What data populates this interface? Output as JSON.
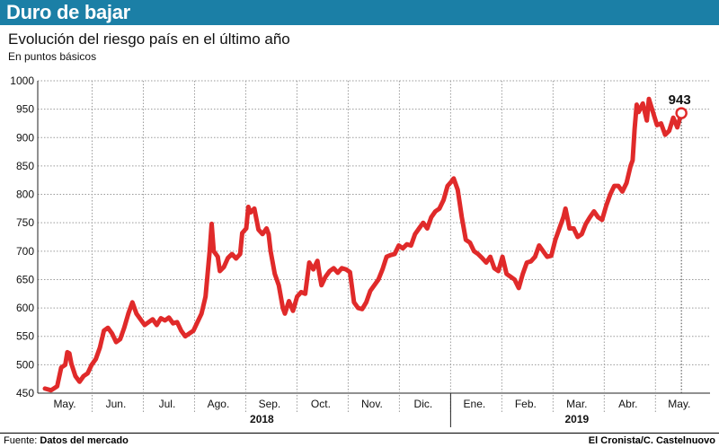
{
  "header": {
    "title": "Duro de bajar"
  },
  "subtitle": "Evolución del riesgo país en el último año",
  "units_label": "En puntos básicos",
  "footer": {
    "source_prefix": "Fuente:",
    "source_value": "Datos del mercado",
    "credit": "El Cronista/C. Castelnuovo"
  },
  "colors": {
    "header_bg": "#1b7fa6",
    "line": "#e02a2a",
    "grid": "#999999"
  },
  "chart_data": {
    "type": "line",
    "title": "Evolución del riesgo país en el último año",
    "ylabel": "En puntos básicos",
    "ylim": [
      450,
      1000
    ],
    "yticks": [
      450,
      500,
      550,
      600,
      650,
      700,
      750,
      800,
      850,
      900,
      950,
      1000
    ],
    "month_labels": [
      "May.",
      "Jun.",
      "Jul.",
      "Ago.",
      "Sep.",
      "Oct.",
      "Nov.",
      "Dic.",
      "Ene.",
      "Feb.",
      "Mar.",
      "Abr.",
      "May."
    ],
    "year_labels": [
      "2018",
      "2019"
    ],
    "end_label": "943",
    "x_unit": "trading day index (0 = early May 2018, ~262 = May 2019)",
    "series": [
      {
        "name": "Riesgo país",
        "values": [
          [
            0,
            458
          ],
          [
            3,
            455
          ],
          [
            6,
            462
          ],
          [
            8,
            495
          ],
          [
            10,
            500
          ],
          [
            11,
            522
          ],
          [
            12,
            520
          ],
          [
            13,
            502
          ],
          [
            15,
            480
          ],
          [
            17,
            470
          ],
          [
            19,
            480
          ],
          [
            21,
            485
          ],
          [
            23,
            500
          ],
          [
            25,
            510
          ],
          [
            27,
            530
          ],
          [
            29,
            560
          ],
          [
            31,
            565
          ],
          [
            33,
            555
          ],
          [
            35,
            540
          ],
          [
            37,
            545
          ],
          [
            39,
            565
          ],
          [
            41,
            590
          ],
          [
            43,
            610
          ],
          [
            45,
            590
          ],
          [
            47,
            580
          ],
          [
            49,
            570
          ],
          [
            51,
            575
          ],
          [
            53,
            580
          ],
          [
            55,
            570
          ],
          [
            57,
            582
          ],
          [
            59,
            578
          ],
          [
            61,
            583
          ],
          [
            63,
            573
          ],
          [
            65,
            575
          ],
          [
            67,
            560
          ],
          [
            69,
            550
          ],
          [
            71,
            555
          ],
          [
            73,
            560
          ],
          [
            75,
            575
          ],
          [
            77,
            590
          ],
          [
            79,
            620
          ],
          [
            81,
            700
          ],
          [
            82,
            748
          ],
          [
            83,
            700
          ],
          [
            85,
            690
          ],
          [
            86,
            665
          ],
          [
            88,
            672
          ],
          [
            90,
            688
          ],
          [
            92,
            695
          ],
          [
            94,
            687
          ],
          [
            96,
            695
          ],
          [
            97,
            732
          ],
          [
            99,
            740
          ],
          [
            100,
            778
          ],
          [
            101,
            768
          ],
          [
            103,
            775
          ],
          [
            105,
            738
          ],
          [
            107,
            730
          ],
          [
            109,
            740
          ],
          [
            110,
            730
          ],
          [
            111,
            700
          ],
          [
            113,
            660
          ],
          [
            115,
            640
          ],
          [
            117,
            600
          ],
          [
            118,
            590
          ],
          [
            120,
            612
          ],
          [
            122,
            595
          ],
          [
            124,
            620
          ],
          [
            126,
            628
          ],
          [
            128,
            625
          ],
          [
            130,
            680
          ],
          [
            132,
            668
          ],
          [
            134,
            683
          ],
          [
            135,
            660
          ],
          [
            136,
            640
          ],
          [
            138,
            655
          ],
          [
            140,
            665
          ],
          [
            142,
            670
          ],
          [
            144,
            662
          ],
          [
            146,
            670
          ],
          [
            148,
            668
          ],
          [
            150,
            663
          ],
          [
            152,
            610
          ],
          [
            154,
            600
          ],
          [
            156,
            598
          ],
          [
            158,
            610
          ],
          [
            160,
            630
          ],
          [
            162,
            640
          ],
          [
            164,
            650
          ],
          [
            166,
            668
          ],
          [
            168,
            690
          ],
          [
            170,
            693
          ],
          [
            172,
            695
          ],
          [
            174,
            710
          ],
          [
            176,
            705
          ],
          [
            178,
            712
          ],
          [
            180,
            710
          ],
          [
            182,
            730
          ],
          [
            184,
            740
          ],
          [
            186,
            750
          ],
          [
            188,
            740
          ],
          [
            190,
            760
          ],
          [
            192,
            770
          ],
          [
            194,
            775
          ],
          [
            196,
            790
          ],
          [
            198,
            815
          ],
          [
            200,
            823
          ],
          [
            201,
            828
          ],
          [
            203,
            808
          ],
          [
            205,
            760
          ],
          [
            207,
            720
          ],
          [
            209,
            715
          ],
          [
            211,
            700
          ],
          [
            213,
            695
          ],
          [
            215,
            688
          ],
          [
            217,
            680
          ],
          [
            219,
            690
          ],
          [
            221,
            670
          ],
          [
            223,
            665
          ],
          [
            225,
            690
          ],
          [
            227,
            660
          ],
          [
            229,
            655
          ],
          [
            231,
            650
          ],
          [
            233,
            635
          ],
          [
            235,
            660
          ],
          [
            237,
            680
          ],
          [
            239,
            682
          ],
          [
            241,
            690
          ],
          [
            243,
            710
          ],
          [
            245,
            700
          ],
          [
            247,
            690
          ],
          [
            249,
            692
          ],
          [
            251,
            720
          ],
          [
            253,
            740
          ],
          [
            255,
            760
          ],
          [
            256,
            775
          ],
          [
            258,
            740
          ],
          [
            260,
            740
          ],
          [
            262,
            725
          ],
          [
            264,
            730
          ],
          [
            266,
            748
          ],
          [
            268,
            760
          ],
          [
            270,
            770
          ],
          [
            272,
            760
          ],
          [
            274,
            755
          ],
          [
            276,
            780
          ],
          [
            278,
            800
          ],
          [
            280,
            815
          ],
          [
            282,
            815
          ],
          [
            284,
            805
          ],
          [
            286,
            820
          ],
          [
            288,
            850
          ],
          [
            289,
            860
          ],
          [
            290,
            915
          ],
          [
            291,
            958
          ],
          [
            292,
            945
          ],
          [
            294,
            960
          ],
          [
            296,
            930
          ],
          [
            297,
            968
          ],
          [
            299,
            945
          ],
          [
            301,
            922
          ],
          [
            303,
            925
          ],
          [
            305,
            905
          ],
          [
            307,
            912
          ],
          [
            309,
            935
          ],
          [
            311,
            918
          ],
          [
            313,
            943
          ]
        ]
      }
    ]
  }
}
